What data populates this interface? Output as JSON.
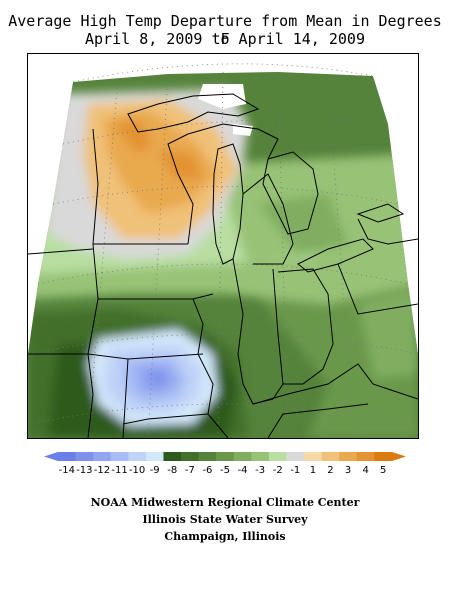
{
  "title_line1": "Average High Temp Departure from Mean in Degrees F",
  "title_line2": "April 8, 2009 to April 14, 2009",
  "legend": {
    "ticks": [
      "-14",
      "-13",
      "-12",
      "-11",
      "-10",
      "-9",
      "-8",
      "-7",
      "-6",
      "-5",
      "-4",
      "-3",
      "-2",
      "-1",
      "1",
      "2",
      "3",
      "4",
      "5"
    ],
    "colors": [
      "#6a7fe8",
      "#7e92ec",
      "#92a6f0",
      "#a7bbf4",
      "#bfd3f8",
      "#d3e8fb",
      "#2e5a1e",
      "#426f2c",
      "#55833b",
      "#6a984b",
      "#80ad5f",
      "#98c276",
      "#b8dea1",
      "#d9d9d9",
      "#f6d9a6",
      "#f0c178",
      "#e9a94e",
      "#e39330",
      "#dc7a12"
    ]
  },
  "credits": [
    "NOAA Midwestern Regional Climate Center",
    "Illinois State Water Survey",
    "Champaign, Illinois"
  ]
}
